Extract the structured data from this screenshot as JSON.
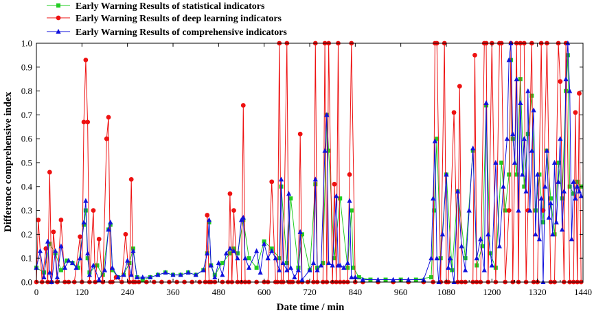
{
  "chart_data": {
    "type": "line",
    "xlabel": "Date time / min",
    "ylabel": "Difference comprehensive index",
    "xlim": [
      0,
      1440
    ],
    "ylim": [
      0,
      1.0
    ],
    "xticks": [
      0,
      120,
      240,
      360,
      480,
      600,
      720,
      840,
      960,
      1080,
      1200,
      1320,
      1440
    ],
    "yticks": [
      0.0,
      0.1,
      0.2,
      0.3,
      0.4,
      0.5,
      0.6,
      0.7,
      0.8,
      0.9,
      1.0
    ],
    "ytick_labels": [
      "0.0",
      "0.1",
      "0.2",
      "0.3",
      "0.4",
      "0.5",
      "0.6",
      "0.7",
      "0.8",
      "0.9",
      "1.0"
    ],
    "legend_position": "top-left",
    "series": [
      {
        "name": "Early Warning Results of statistical indicators",
        "color": "#22cc22",
        "marker": "square",
        "x": [
          0,
          20,
          35,
          50,
          65,
          80,
          95,
          110,
          125,
          130,
          135,
          140,
          160,
          175,
          190,
          195,
          200,
          215,
          230,
          245,
          255,
          265,
          280,
          300,
          320,
          340,
          360,
          380,
          400,
          420,
          440,
          450,
          455,
          460,
          470,
          490,
          510,
          520,
          530,
          545,
          560,
          580,
          600,
          620,
          640,
          645,
          660,
          670,
          690,
          700,
          720,
          735,
          740,
          755,
          765,
          770,
          785,
          800,
          820,
          830,
          835,
          850,
          880,
          920,
          960,
          1000,
          1040,
          1048,
          1055,
          1065,
          1080,
          1095,
          1110,
          1130,
          1150,
          1160,
          1175,
          1185,
          1195,
          1210,
          1225,
          1235,
          1245,
          1250,
          1255,
          1265,
          1275,
          1285,
          1295,
          1305,
          1315,
          1325,
          1335,
          1345,
          1355,
          1365,
          1375,
          1385,
          1395,
          1400,
          1405,
          1415,
          1425,
          1435
        ],
        "values": [
          0.06,
          0.04,
          0.16,
          0.12,
          0.05,
          0.09,
          0.08,
          0.06,
          0.24,
          0.3,
          0.1,
          0.04,
          0.07,
          0.03,
          0.22,
          0.24,
          0.05,
          0.02,
          0.03,
          0.08,
          0.14,
          0.02,
          0.01,
          0.02,
          0.03,
          0.04,
          0.03,
          0.03,
          0.04,
          0.03,
          0.05,
          0.12,
          0.25,
          0.07,
          0.03,
          0.08,
          0.12,
          0.14,
          0.12,
          0.26,
          0.1,
          0.06,
          0.17,
          0.14,
          0.1,
          0.4,
          0.08,
          0.35,
          0.06,
          0.2,
          0.05,
          0.41,
          0.06,
          0.08,
          0.7,
          0.55,
          0.1,
          0.35,
          0.06,
          0.3,
          0.06,
          0.02,
          0.01,
          0.01,
          0.01,
          0.01,
          0.02,
          0.3,
          0.6,
          0.1,
          0.45,
          0.05,
          0.38,
          0.1,
          0.55,
          0.07,
          0.15,
          0.74,
          0.12,
          0.06,
          0.5,
          0.3,
          0.45,
          0.93,
          0.6,
          0.45,
          0.85,
          0.4,
          0.62,
          0.78,
          0.3,
          0.45,
          0.25,
          0.55,
          0.35,
          0.2,
          0.5,
          0.35,
          0.8,
          0.95,
          0.4,
          0.37,
          0.42,
          0.4
        ]
      },
      {
        "name": "Early Warning Results of deep learning indicators",
        "color": "#ee1111",
        "marker": "circle",
        "x": [
          0,
          5,
          15,
          25,
          30,
          35,
          40,
          45,
          55,
          65,
          75,
          85,
          100,
          115,
          120,
          125,
          130,
          135,
          140,
          150,
          155,
          165,
          175,
          185,
          190,
          195,
          200,
          210,
          225,
          235,
          245,
          250,
          255,
          260,
          270,
          290,
          310,
          330,
          350,
          370,
          390,
          410,
          430,
          445,
          450,
          455,
          460,
          470,
          490,
          505,
          510,
          515,
          520,
          530,
          540,
          545,
          550,
          560,
          580,
          600,
          610,
          620,
          630,
          635,
          640,
          645,
          650,
          660,
          665,
          670,
          675,
          690,
          695,
          700,
          715,
          730,
          735,
          740,
          755,
          760,
          765,
          770,
          780,
          785,
          790,
          795,
          800,
          810,
          820,
          825,
          830,
          840,
          860,
          900,
          940,
          980,
          1020,
          1045,
          1050,
          1055,
          1065,
          1075,
          1080,
          1085,
          1100,
          1110,
          1115,
          1120,
          1130,
          1150,
          1155,
          1160,
          1170,
          1180,
          1185,
          1190,
          1200,
          1210,
          1220,
          1225,
          1235,
          1245,
          1250,
          1255,
          1265,
          1270,
          1275,
          1285,
          1290,
          1295,
          1305,
          1310,
          1320,
          1330,
          1335,
          1345,
          1355,
          1365,
          1375,
          1380,
          1390,
          1395,
          1405,
          1415,
          1420,
          1425,
          1430,
          1435
        ],
        "values": [
          0.0,
          0.26,
          0.0,
          0.14,
          0.0,
          0.46,
          0.0,
          0.21,
          0.0,
          0.26,
          0.0,
          0.0,
          0.0,
          0.19,
          0.0,
          0.67,
          0.93,
          0.67,
          0.0,
          0.3,
          0.0,
          0.18,
          0.0,
          0.6,
          0.69,
          0.0,
          0.0,
          0.02,
          0.0,
          0.2,
          0.0,
          0.43,
          0.0,
          0.0,
          0.0,
          0.0,
          0.0,
          0.0,
          0.0,
          0.0,
          0.0,
          0.0,
          0.0,
          0.0,
          0.28,
          0.0,
          0.0,
          0.0,
          0.0,
          0.0,
          0.37,
          0.0,
          0.3,
          0.0,
          0.0,
          0.74,
          0.0,
          0.0,
          0.0,
          0.0,
          0.0,
          0.42,
          0.0,
          0.0,
          1.0,
          0.0,
          0.0,
          1.0,
          0.0,
          0.0,
          0.0,
          0.0,
          0.62,
          0.0,
          0.0,
          0.0,
          1.0,
          0.0,
          0.0,
          1.0,
          0.0,
          1.0,
          0.0,
          0.41,
          0.0,
          1.0,
          0.0,
          0.0,
          0.0,
          0.45,
          1.0,
          0.0,
          0.0,
          0.0,
          0.0,
          0.0,
          0.0,
          0.0,
          1.0,
          1.0,
          0.0,
          1.0,
          0.0,
          0.0,
          0.71,
          0.0,
          0.82,
          0.0,
          0.0,
          0.0,
          0.95,
          0.0,
          0.0,
          1.0,
          1.0,
          0.0,
          1.0,
          0.0,
          1.0,
          1.0,
          0.0,
          0.3,
          1.0,
          0.0,
          1.0,
          0.0,
          1.0,
          1.0,
          0.0,
          0.3,
          1.0,
          0.0,
          0.0,
          1.0,
          0.3,
          1.0,
          0.0,
          0.0,
          1.0,
          0.84,
          0.0,
          1.0,
          0.0,
          0.0,
          0.71,
          0.0,
          0.79,
          0.0
        ]
      },
      {
        "name": "Early Warning Results of comprehensive indicators",
        "color": "#1111dd",
        "marker": "triangle",
        "x": [
          0,
          10,
          20,
          30,
          35,
          40,
          50,
          55,
          65,
          75,
          85,
          95,
          105,
          115,
          125,
          130,
          135,
          140,
          150,
          165,
          180,
          190,
          195,
          200,
          215,
          230,
          240,
          250,
          255,
          265,
          280,
          300,
          320,
          340,
          360,
          380,
          400,
          420,
          440,
          450,
          455,
          460,
          470,
          480,
          490,
          500,
          510,
          520,
          530,
          540,
          545,
          550,
          560,
          580,
          590,
          600,
          610,
          620,
          630,
          640,
          645,
          650,
          660,
          665,
          670,
          680,
          690,
          695,
          700,
          720,
          730,
          735,
          740,
          750,
          760,
          765,
          770,
          780,
          790,
          795,
          800,
          810,
          820,
          825,
          830,
          840,
          860,
          900,
          940,
          980,
          1020,
          1040,
          1045,
          1050,
          1055,
          1060,
          1070,
          1080,
          1085,
          1090,
          1100,
          1110,
          1120,
          1130,
          1140,
          1150,
          1160,
          1170,
          1180,
          1185,
          1190,
          1200,
          1210,
          1220,
          1230,
          1240,
          1245,
          1250,
          1255,
          1260,
          1265,
          1270,
          1275,
          1280,
          1285,
          1290,
          1295,
          1300,
          1305,
          1310,
          1315,
          1320,
          1325,
          1330,
          1335,
          1340,
          1345,
          1350,
          1355,
          1360,
          1365,
          1370,
          1375,
          1380,
          1385,
          1390,
          1395,
          1400,
          1405,
          1410,
          1415,
          1420,
          1425,
          1430,
          1435
        ],
        "values": [
          0.06,
          0.13,
          0.02,
          0.17,
          0.04,
          0.0,
          0.13,
          0.02,
          0.15,
          0.06,
          0.09,
          0.08,
          0.06,
          0.1,
          0.25,
          0.34,
          0.12,
          0.03,
          0.07,
          0.01,
          0.05,
          0.22,
          0.25,
          0.06,
          0.02,
          0.03,
          0.09,
          0.03,
          0.13,
          0.02,
          0.02,
          0.02,
          0.03,
          0.04,
          0.03,
          0.03,
          0.04,
          0.03,
          0.05,
          0.12,
          0.26,
          0.07,
          0.02,
          0.08,
          0.03,
          0.12,
          0.14,
          0.13,
          0.1,
          0.26,
          0.27,
          0.1,
          0.06,
          0.13,
          0.04,
          0.16,
          0.1,
          0.13,
          0.1,
          0.05,
          0.43,
          0.08,
          0.05,
          0.37,
          0.06,
          0.02,
          0.05,
          0.21,
          0.01,
          0.05,
          0.08,
          0.43,
          0.05,
          0.07,
          0.55,
          0.7,
          0.08,
          0.07,
          0.36,
          0.07,
          0.07,
          0.06,
          0.08,
          0.34,
          0.02,
          0.02,
          0.01,
          0.01,
          0.01,
          0.01,
          0.01,
          0.1,
          0.35,
          0.59,
          0.1,
          0.0,
          0.2,
          0.45,
          0.06,
          0.1,
          0.0,
          0.38,
          0.15,
          0.05,
          0.3,
          0.56,
          0.1,
          0.18,
          0.05,
          0.75,
          0.2,
          0.07,
          0.5,
          0.15,
          0.4,
          0.6,
          0.93,
          1.0,
          0.62,
          0.5,
          0.85,
          0.3,
          0.75,
          0.45,
          0.6,
          0.38,
          0.8,
          0.3,
          0.55,
          0.72,
          0.2,
          0.45,
          0.18,
          0.35,
          0.0,
          0.4,
          0.55,
          0.27,
          0.33,
          0.2,
          0.5,
          0.25,
          0.42,
          0.6,
          0.22,
          0.38,
          0.85,
          1.0,
          0.8,
          0.18,
          0.42,
          0.35,
          0.4,
          0.38,
          0.36
        ]
      }
    ]
  }
}
